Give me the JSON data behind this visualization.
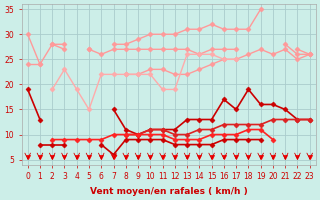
{
  "bg_color": "#cceee8",
  "grid_color": "#aacccc",
  "xlabel": "Vent moyen/en rafales ( km/h )",
  "xlabel_color": "#cc0000",
  "tick_color": "#cc0000",
  "xlim": [
    -0.5,
    23.5
  ],
  "ylim": [
    4,
    36
  ],
  "yticks": [
    5,
    10,
    15,
    20,
    25,
    30,
    35
  ],
  "xticks": [
    0,
    1,
    2,
    3,
    4,
    5,
    6,
    7,
    8,
    9,
    10,
    11,
    12,
    13,
    14,
    15,
    16,
    17,
    18,
    19,
    20,
    21,
    22,
    23
  ],
  "series": [
    {
      "color": "#ff9999",
      "linewidth": 1.0,
      "marker": "D",
      "markersize": 2.5,
      "y": [
        30,
        24,
        28,
        28,
        null,
        27,
        null,
        28,
        28,
        29,
        30,
        30,
        30,
        31,
        31,
        32,
        31,
        31,
        31,
        35,
        null,
        null,
        27,
        26
      ]
    },
    {
      "color": "#ff9999",
      "linewidth": 1.0,
      "marker": "D",
      "markersize": 2.5,
      "y": [
        null,
        null,
        28,
        27,
        null,
        27,
        26,
        27,
        27,
        27,
        27,
        27,
        27,
        27,
        26,
        27,
        27,
        27,
        null,
        null,
        null,
        28,
        26,
        26
      ]
    },
    {
      "color": "#ff9999",
      "linewidth": 1.0,
      "marker": "D",
      "markersize": 2.5,
      "y": [
        24,
        24,
        null,
        null,
        null,
        null,
        null,
        null,
        22,
        22,
        23,
        23,
        22,
        22,
        23,
        24,
        25,
        25,
        26,
        27,
        26,
        27,
        25,
        26
      ]
    },
    {
      "color": "#ffaaaa",
      "linewidth": 1.0,
      "marker": "D",
      "markersize": 2.5,
      "y": [
        null,
        null,
        19,
        23,
        19,
        15,
        22,
        22,
        22,
        22,
        22,
        19,
        19,
        26,
        26,
        26,
        25,
        25,
        null,
        null,
        null,
        null,
        null,
        null
      ]
    },
    {
      "color": "#cc0000",
      "linewidth": 1.2,
      "marker": "D",
      "markersize": 2.5,
      "y": [
        19,
        13,
        null,
        null,
        null,
        null,
        null,
        15,
        11,
        10,
        11,
        11,
        11,
        13,
        13,
        13,
        17,
        15,
        19,
        16,
        16,
        15,
        13,
        13
      ]
    },
    {
      "color": "#dd2222",
      "linewidth": 1.2,
      "marker": "D",
      "markersize": 2.5,
      "y": [
        null,
        null,
        null,
        null,
        null,
        null,
        null,
        null,
        10,
        10,
        11,
        11,
        10,
        10,
        11,
        11,
        12,
        12,
        12,
        12,
        13,
        13,
        13,
        13
      ]
    },
    {
      "color": "#ff2222",
      "linewidth": 1.2,
      "marker": "D",
      "markersize": 2.5,
      "y": [
        null,
        null,
        9,
        9,
        9,
        9,
        9,
        10,
        10,
        10,
        10,
        10,
        9,
        9,
        9,
        10,
        10,
        10,
        11,
        11,
        9,
        null,
        null,
        null
      ]
    },
    {
      "color": "#cc0000",
      "linewidth": 1.2,
      "marker": "D",
      "markersize": 2.5,
      "y": [
        null,
        8,
        8,
        8,
        null,
        null,
        8,
        6,
        9,
        9,
        9,
        9,
        8,
        8,
        8,
        8,
        9,
        9,
        9,
        9,
        null,
        null,
        null,
        null
      ]
    },
    {
      "color": "#ff0000",
      "linewidth": 0.5,
      "marker": "v",
      "markersize": 3,
      "linestyle": "none",
      "y": [
        5.5,
        5.5,
        5.5,
        5.5,
        5.5,
        5.5,
        5.5,
        5.5,
        5.5,
        5.5,
        5.5,
        5.5,
        5.5,
        5.5,
        5.5,
        5.5,
        5.5,
        5.5,
        5.5,
        5.5,
        5.5,
        5.5,
        5.5,
        5.5
      ]
    }
  ]
}
